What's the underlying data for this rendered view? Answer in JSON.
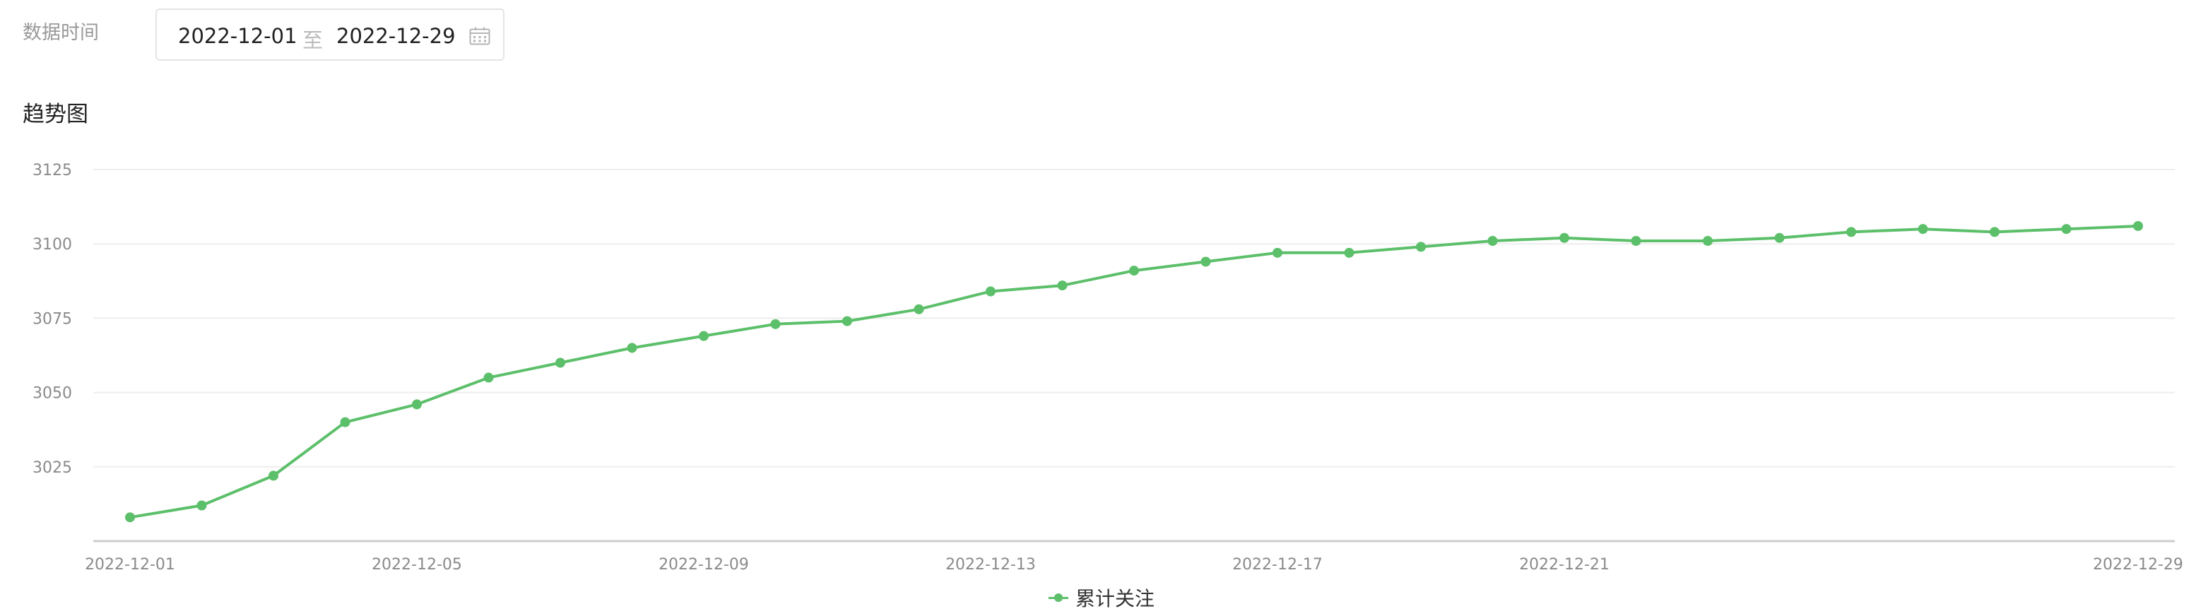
{
  "filter": {
    "label": "数据时间",
    "start_date": "2022-12-01",
    "separator": "至",
    "end_date": "2022-12-29",
    "calendar_icon": "calendar-icon"
  },
  "section_title": "趋势图",
  "colors": {
    "series": "#5cbf6a",
    "grid": "#eeeeee",
    "axis": "#cccccc",
    "tick_text": "#8a8a8a"
  },
  "chart_data": {
    "type": "line",
    "title": "趋势图",
    "xlabel": "",
    "ylabel": "",
    "ylim": [
      3000,
      3125
    ],
    "yticks": [
      3025,
      3050,
      3075,
      3100,
      3125
    ],
    "xticks": [
      "2022-12-01",
      "2022-12-05",
      "2022-12-09",
      "2022-12-13",
      "2022-12-17",
      "2022-12-21",
      "2022-12-29"
    ],
    "grid": true,
    "legend_position": "bottom-center",
    "x": [
      "2022-12-01",
      "2022-12-02",
      "2022-12-03",
      "2022-12-04",
      "2022-12-05",
      "2022-12-06",
      "2022-12-07",
      "2022-12-08",
      "2022-12-09",
      "2022-12-10",
      "2022-12-11",
      "2022-12-12",
      "2022-12-13",
      "2022-12-14",
      "2022-12-15",
      "2022-12-16",
      "2022-12-17",
      "2022-12-18",
      "2022-12-19",
      "2022-12-20",
      "2022-12-21",
      "2022-12-22",
      "2022-12-23",
      "2022-12-24",
      "2022-12-25",
      "2022-12-26",
      "2022-12-27",
      "2022-12-28",
      "2022-12-29"
    ],
    "series": [
      {
        "name": "累计关注",
        "values": [
          3008,
          3012,
          3022,
          3040,
          3046,
          3055,
          3060,
          3065,
          3069,
          3073,
          3074,
          3078,
          3084,
          3086,
          3091,
          3094,
          3097,
          3097,
          3099,
          3101,
          3102,
          3101,
          3101,
          3102,
          3104,
          3105,
          3104,
          3105,
          3106
        ]
      }
    ]
  }
}
